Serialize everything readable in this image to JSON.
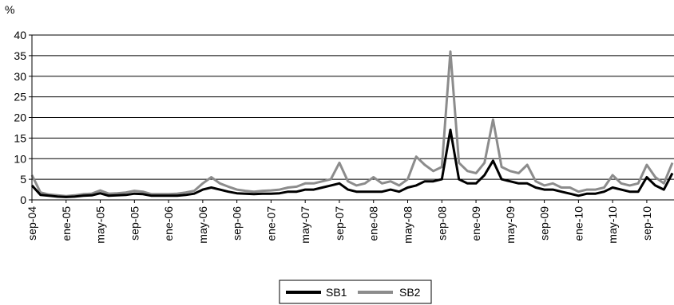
{
  "chart_data": {
    "type": "line",
    "ylabel": "%",
    "ylim": [
      0,
      40
    ],
    "y_ticks": [
      "0",
      "5",
      "10",
      "15",
      "20",
      "25",
      "30",
      "35",
      "40"
    ],
    "x_tick_labels": [
      "sep-04",
      "ene-05",
      "may-05",
      "sep-05",
      "ene-06",
      "may-06",
      "sep-06",
      "ene-07",
      "may-07",
      "sep-07",
      "ene-08",
      "may-08",
      "sep-08",
      "ene-09",
      "may-09",
      "sep-09",
      "ene-10",
      "may-10",
      "sep-10"
    ],
    "x_range_months": [
      "sep-04",
      "dic-10"
    ],
    "grid": "horizontal",
    "legend_position": "bottom-center",
    "x": [
      "sep-04",
      "oct-04",
      "nov-04",
      "dic-04",
      "ene-05",
      "feb-05",
      "mar-05",
      "abr-05",
      "may-05",
      "jun-05",
      "jul-05",
      "ago-05",
      "sep-05",
      "oct-05",
      "nov-05",
      "dic-05",
      "ene-06",
      "feb-06",
      "mar-06",
      "abr-06",
      "may-06",
      "jun-06",
      "jul-06",
      "ago-06",
      "sep-06",
      "oct-06",
      "nov-06",
      "dic-06",
      "ene-07",
      "feb-07",
      "mar-07",
      "abr-07",
      "may-07",
      "jun-07",
      "jul-07",
      "ago-07",
      "sep-07",
      "oct-07",
      "nov-07",
      "dic-07",
      "ene-08",
      "feb-08",
      "mar-08",
      "abr-08",
      "may-08",
      "jun-08",
      "jul-08",
      "ago-08",
      "sep-08",
      "oct-08",
      "nov-08",
      "dic-08",
      "ene-09",
      "feb-09",
      "mar-09",
      "abr-09",
      "may-09",
      "jun-09",
      "jul-09",
      "ago-09",
      "sep-09",
      "oct-09",
      "nov-09",
      "dic-09",
      "ene-10",
      "feb-10",
      "mar-10",
      "abr-10",
      "may-10",
      "jun-10",
      "jul-10",
      "ago-10",
      "sep-10",
      "oct-10",
      "nov-10",
      "dic-10"
    ],
    "series": [
      {
        "name": "SB1",
        "color": "#000000",
        "values": [
          3.5,
          1.2,
          1.0,
          0.8,
          0.7,
          0.8,
          1.0,
          1.1,
          1.6,
          1.0,
          1.1,
          1.2,
          1.5,
          1.4,
          1.0,
          1.0,
          1.0,
          1.0,
          1.2,
          1.5,
          2.5,
          3.0,
          2.5,
          2.0,
          1.6,
          1.5,
          1.4,
          1.5,
          1.5,
          1.6,
          2.0,
          2.0,
          2.5,
          2.5,
          3.0,
          3.5,
          4.0,
          2.5,
          2.0,
          2.0,
          2.0,
          2.0,
          2.5,
          2.0,
          3.0,
          3.5,
          4.5,
          4.5,
          5.0,
          17.0,
          5.0,
          4.0,
          4.0,
          6.0,
          9.5,
          5.0,
          4.5,
          4.0,
          4.0,
          3.0,
          2.5,
          2.5,
          2.0,
          1.5,
          1.0,
          1.5,
          1.5,
          2.0,
          3.0,
          2.5,
          2.0,
          2.0,
          5.5,
          3.5,
          2.5,
          6.5
        ]
      },
      {
        "name": "SB2",
        "color": "#8c8c8c",
        "values": [
          6.0,
          1.8,
          1.3,
          1.1,
          0.9,
          1.1,
          1.4,
          1.5,
          2.3,
          1.5,
          1.6,
          1.8,
          2.2,
          2.0,
          1.4,
          1.4,
          1.4,
          1.5,
          1.8,
          2.2,
          4.0,
          5.5,
          4.0,
          3.2,
          2.5,
          2.2,
          2.0,
          2.2,
          2.3,
          2.5,
          3.0,
          3.2,
          4.0,
          4.0,
          4.5,
          5.0,
          9.0,
          4.5,
          3.5,
          4.0,
          5.5,
          4.0,
          4.5,
          3.5,
          5.0,
          10.5,
          8.5,
          7.0,
          8.0,
          36.0,
          9.0,
          7.0,
          6.5,
          9.0,
          19.5,
          8.0,
          7.0,
          6.5,
          8.5,
          4.5,
          3.5,
          4.0,
          3.0,
          3.0,
          2.0,
          2.5,
          2.5,
          3.0,
          6.0,
          4.0,
          3.5,
          4.0,
          8.5,
          5.5,
          4.0,
          9.0
        ]
      }
    ]
  }
}
